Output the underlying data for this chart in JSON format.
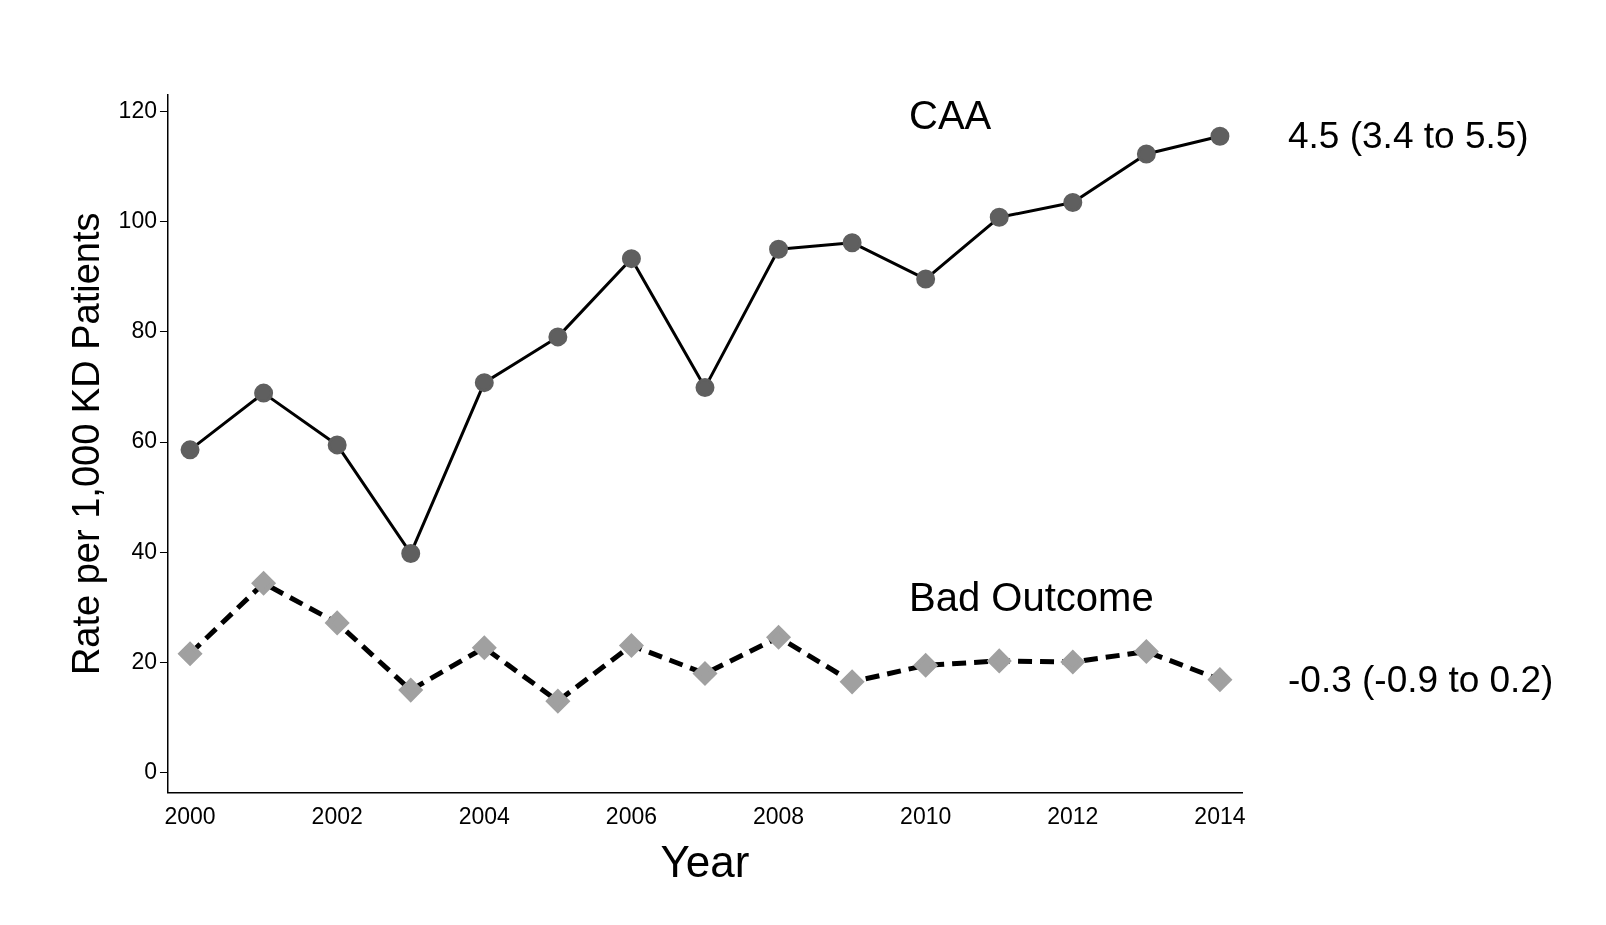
{
  "chart_data": {
    "type": "line",
    "xlabel": "Year",
    "ylabel": "Rate per 1,000 KD Patients",
    "x": [
      2000,
      2001,
      2002,
      2003,
      2004,
      2005,
      2006,
      2007,
      2008,
      2009,
      2010,
      2011,
      2012,
      2013,
      2014
    ],
    "xlim": [
      1999.7,
      2014.3
    ],
    "xticks": [
      2000,
      2002,
      2004,
      2006,
      2008,
      2010,
      2012,
      2014
    ],
    "ylim": [
      -3.6,
      123
    ],
    "yticks": [
      0,
      20,
      40,
      60,
      80,
      100,
      120
    ],
    "grid": false,
    "legend": false,
    "series": [
      {
        "name": "CAA",
        "color": "#5f5f5f",
        "marker": "circle",
        "line_style": "solid",
        "values": [
          58.6,
          68.9,
          59.5,
          39.8,
          70.8,
          79.1,
          93.3,
          69.9,
          95.0,
          96.2,
          89.6,
          100.8,
          103.5,
          112.3,
          115.5
        ]
      },
      {
        "name": "Bad Outcome",
        "color": "#a0a0a0",
        "marker": "diamond",
        "line_style": "dashed",
        "values": [
          21.6,
          34.4,
          27.2,
          15.0,
          22.7,
          13.0,
          23.1,
          18.0,
          24.6,
          16.5,
          19.5,
          20.3,
          20.1,
          22.0,
          16.9
        ]
      }
    ],
    "annotations": [
      "4.5 (3.4 to 5.5)",
      "-0.3 (-0.9 to 0.2)"
    ]
  }
}
